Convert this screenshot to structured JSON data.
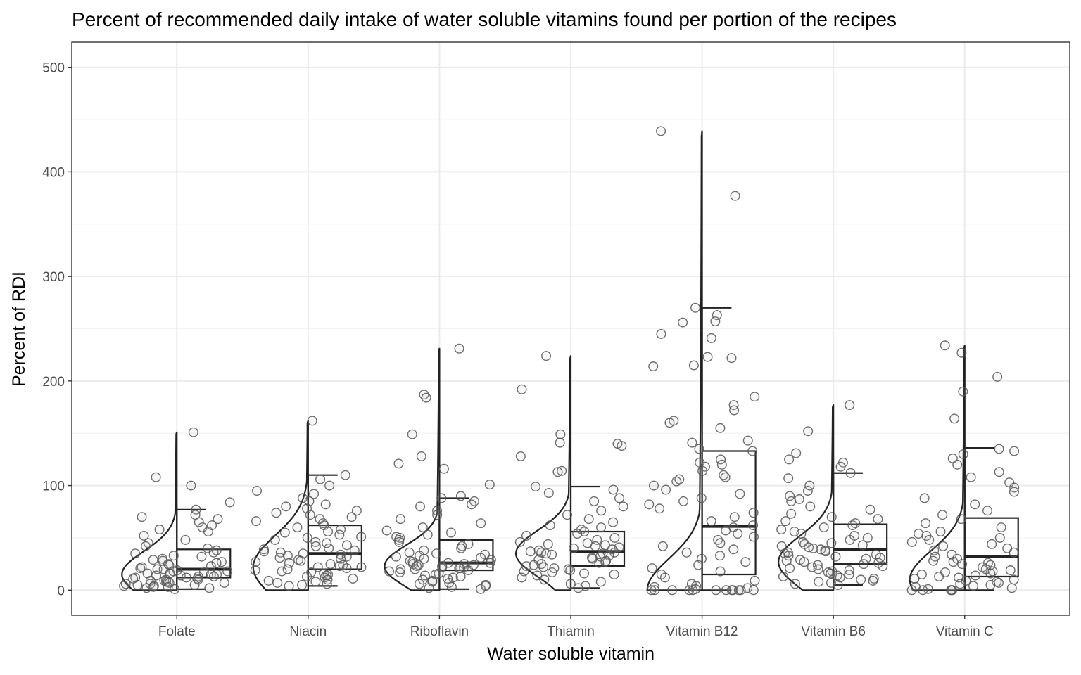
{
  "chart_data": {
    "type": "violin-box-jitter",
    "title": "Percent of recommended daily intake of water soluble vitamins found per portion of the recipes",
    "xlabel": "Water soluble vitamin",
    "ylabel": "Percent of RDI",
    "ylim": [
      -24,
      524
    ],
    "yticks": [
      0,
      100,
      200,
      300,
      400,
      500
    ],
    "ytick_labels": [
      "0",
      "100",
      "200",
      "300",
      "400",
      "500"
    ],
    "grid": true,
    "legend": "none",
    "colors": {
      "panel_border": "#333333",
      "grid_major": "#ebebeb",
      "grid_minor": "#f3f3f3",
      "outline": "#222222",
      "point_stroke": "#555555",
      "point_fill": "#bdbdbd"
    },
    "categories": [
      "Folate",
      "Niacin",
      "Riboflavin",
      "Thiamin",
      "Vitamin B12",
      "Vitamin B6",
      "Vitamin C"
    ],
    "boxes": [
      {
        "category": "Folate",
        "min": 1,
        "q1": 12,
        "median": 20,
        "q3": 39,
        "max": 77
      },
      {
        "category": "Niacin",
        "min": 4,
        "q1": 20,
        "median": 35,
        "q3": 62,
        "max": 110
      },
      {
        "category": "Riboflavin",
        "min": 1,
        "q1": 19,
        "median": 26,
        "q3": 48,
        "max": 88
      },
      {
        "category": "Thiamin",
        "min": 2,
        "q1": 23,
        "median": 37,
        "q3": 56,
        "max": 99
      },
      {
        "category": "Vitamin B12",
        "min": 0,
        "q1": 15,
        "median": 61,
        "q3": 133,
        "max": 270
      },
      {
        "category": "Vitamin B6",
        "min": 5,
        "q1": 25,
        "median": 39,
        "q3": 63,
        "max": 112
      },
      {
        "category": "Vitamin C",
        "min": 0,
        "q1": 13,
        "median": 32,
        "q3": 69,
        "max": 136
      }
    ],
    "violins": [
      {
        "category": "Folate",
        "mode": 15,
        "spread": 22,
        "max": 151
      },
      {
        "category": "Niacin",
        "mode": 22,
        "spread": 30,
        "max": 162
      },
      {
        "category": "Riboflavin",
        "mode": 23,
        "spread": 20,
        "max": 231
      },
      {
        "category": "Thiamin",
        "mode": 35,
        "spread": 22,
        "max": 224
      },
      {
        "category": "Vitamin B12",
        "mode": 0,
        "spread": 30,
        "max": 439
      },
      {
        "category": "Vitamin B6",
        "mode": 27,
        "spread": 25,
        "max": 177
      },
      {
        "category": "Vitamin C",
        "mode": 10,
        "spread": 28,
        "max": 234
      }
    ],
    "points": [
      {
        "category": "Folate",
        "values": [
          151,
          108,
          100,
          84,
          77,
          72,
          70,
          68,
          65,
          62,
          60,
          58,
          56,
          52,
          48,
          45,
          42,
          40,
          38,
          36,
          35,
          33,
          32,
          30,
          29,
          28,
          27,
          26,
          25,
          24,
          23,
          22,
          21,
          20,
          20,
          19,
          18,
          18,
          17,
          16,
          16,
          15,
          15,
          14,
          14,
          13,
          13,
          12,
          12,
          11,
          11,
          10,
          10,
          9,
          9,
          8,
          8,
          7,
          7,
          6,
          6,
          5,
          5,
          4,
          4,
          3,
          3,
          2,
          2,
          1
        ]
      },
      {
        "category": "Niacin",
        "values": [
          162,
          110,
          106,
          100,
          95,
          92,
          88,
          85,
          82,
          80,
          78,
          76,
          74,
          72,
          70,
          68,
          66,
          64,
          62,
          60,
          58,
          56,
          55,
          53,
          51,
          50,
          48,
          46,
          45,
          43,
          42,
          40,
          39,
          38,
          37,
          36,
          35,
          34,
          33,
          32,
          31,
          30,
          29,
          28,
          27,
          26,
          25,
          24,
          23,
          22,
          22,
          21,
          20,
          19,
          18,
          17,
          16,
          15,
          14,
          13,
          12,
          11,
          10,
          9,
          8,
          7,
          6,
          5,
          4
        ]
      },
      {
        "category": "Riboflavin",
        "values": [
          231,
          187,
          184,
          149,
          128,
          121,
          116,
          101,
          90,
          88,
          85,
          82,
          80,
          76,
          72,
          68,
          64,
          60,
          57,
          55,
          53,
          51,
          50,
          48,
          46,
          44,
          42,
          40,
          38,
          36,
          35,
          34,
          33,
          32,
          31,
          30,
          29,
          28,
          27,
          26,
          26,
          25,
          25,
          24,
          24,
          23,
          23,
          22,
          22,
          21,
          21,
          20,
          20,
          19,
          18,
          17,
          16,
          15,
          14,
          13,
          12,
          11,
          10,
          9,
          8,
          7,
          6,
          5,
          4,
          3,
          2,
          1
        ]
      },
      {
        "category": "Thiamin",
        "values": [
          224,
          192,
          149,
          141,
          140,
          138,
          128,
          114,
          113,
          99,
          96,
          93,
          88,
          85,
          80,
          76,
          72,
          68,
          65,
          62,
          60,
          58,
          56,
          54,
          52,
          50,
          48,
          46,
          45,
          44,
          43,
          42,
          41,
          40,
          39,
          38,
          37,
          36,
          36,
          35,
          35,
          34,
          33,
          32,
          31,
          30,
          29,
          28,
          27,
          26,
          25,
          24,
          23,
          22,
          21,
          20,
          19,
          18,
          17,
          16,
          15,
          14,
          12,
          10,
          8,
          6,
          4,
          2
        ]
      },
      {
        "category": "Vitamin B12",
        "values": [
          439,
          377,
          270,
          263,
          257,
          256,
          245,
          241,
          223,
          222,
          215,
          214,
          185,
          177,
          172,
          162,
          160,
          155,
          143,
          141,
          135,
          133,
          125,
          122,
          120,
          118,
          114,
          110,
          108,
          106,
          104,
          100,
          96,
          92,
          88,
          85,
          82,
          78,
          74,
          70,
          66,
          62,
          60,
          57,
          54,
          51,
          48,
          45,
          42,
          39,
          36,
          33,
          30,
          27,
          24,
          21,
          18,
          15,
          12,
          9,
          6,
          4,
          3,
          2,
          1,
          0,
          0,
          0,
          0,
          0,
          0,
          0,
          0,
          0,
          0,
          0,
          0
        ]
      },
      {
        "category": "Vitamin B6",
        "values": [
          177,
          152,
          131,
          125,
          122,
          118,
          112,
          107,
          100,
          95,
          90,
          87,
          85,
          80,
          77,
          73,
          70,
          68,
          66,
          64,
          62,
          60,
          58,
          56,
          54,
          52,
          50,
          48,
          46,
          45,
          44,
          43,
          42,
          41,
          40,
          39,
          38,
          37,
          36,
          35,
          34,
          33,
          32,
          31,
          30,
          29,
          28,
          27,
          26,
          25,
          24,
          23,
          22,
          21,
          20,
          19,
          18,
          17,
          16,
          15,
          14,
          13,
          12,
          11,
          10,
          9,
          8,
          7,
          6,
          5
        ]
      },
      {
        "category": "Vitamin C",
        "values": [
          234,
          227,
          204,
          190,
          164,
          135,
          133,
          130,
          126,
          120,
          113,
          108,
          103,
          98,
          94,
          88,
          82,
          76,
          72,
          68,
          64,
          60,
          56,
          54,
          52,
          50,
          48,
          46,
          44,
          42,
          40,
          38,
          36,
          34,
          32,
          30,
          28,
          27,
          26,
          25,
          24,
          22,
          20,
          19,
          18,
          17,
          16,
          15,
          14,
          13,
          12,
          11,
          10,
          9,
          8,
          7,
          6,
          5,
          4,
          3,
          2,
          1,
          0,
          0,
          0,
          0,
          0
        ]
      }
    ]
  }
}
